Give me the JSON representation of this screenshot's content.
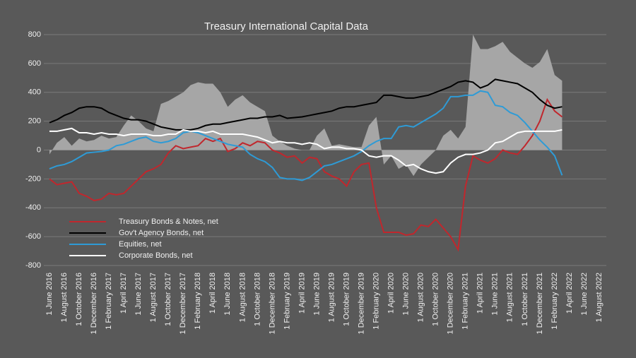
{
  "chart_data": {
    "type": "line",
    "title": "Treasury International Capital Data",
    "categories": [
      "1 June 2016",
      null,
      "1 August 2016",
      null,
      "1 October 2016",
      null,
      "1 December 2016",
      null,
      "1 February 2017",
      null,
      "1 April 2017",
      null,
      "1 June 2017",
      null,
      "1 August 2017",
      null,
      "1 October 2017",
      null,
      "1 December 2017",
      null,
      "1 February 2018",
      null,
      "1 April 2018",
      null,
      "1 June 2018",
      null,
      "1 August 2018",
      null,
      "1 October 2018",
      null,
      "1 December 2018",
      null,
      "1 February 2019",
      null,
      "1 April 2019",
      null,
      "1 June 2019",
      null,
      "1 August 2019",
      null,
      "1 October 2019",
      null,
      "1 December 2019",
      null,
      "1 February 2020",
      null,
      "1 April 2020",
      null,
      "1 June 2020",
      null,
      "1 August 2020",
      null,
      "1 October 2020",
      null,
      "1 December 2020",
      null,
      "1 February 2021",
      null,
      "1 April 2021",
      null,
      "1 June 2021",
      null,
      "1 August 2021",
      null,
      "1 October 2021",
      null,
      "1 December 2021",
      null,
      "1 February 2022",
      null,
      "1 April 2022",
      null,
      "1 June 2022",
      null,
      "1 August 2022"
    ],
    "ylim": [
      -800,
      800
    ],
    "yticks": [
      -800,
      -600,
      -400,
      -200,
      0,
      200,
      400,
      600,
      800
    ],
    "grid": true,
    "series": [
      {
        "type": "area",
        "color": "#a6a6a6",
        "values": [
          -30,
          50,
          90,
          30,
          80,
          60,
          70,
          100,
          80,
          90,
          170,
          240,
          200,
          150,
          130,
          320,
          340,
          370,
          400,
          450,
          470,
          460,
          460,
          400,
          300,
          350,
          380,
          330,
          300,
          270,
          100,
          60,
          30,
          10,
          0,
          0,
          100,
          150,
          30,
          40,
          30,
          20,
          20,
          170,
          230,
          -100,
          -40,
          -130,
          -100,
          -180,
          -100,
          -50,
          0,
          100,
          140,
          80,
          160,
          800,
          700,
          700,
          720,
          750,
          680,
          640,
          600,
          570,
          610,
          700,
          520,
          480,
          null,
          null,
          null,
          null,
          null
        ]
      },
      {
        "name": "Treasury Bonds & Notes, net",
        "color": "#c0272d",
        "values": [
          -200,
          -240,
          -230,
          -220,
          -300,
          -320,
          -350,
          -340,
          -300,
          -310,
          -300,
          -250,
          -200,
          -150,
          -130,
          -100,
          -20,
          30,
          10,
          20,
          30,
          80,
          60,
          80,
          -10,
          10,
          50,
          30,
          60,
          50,
          0,
          -20,
          -50,
          -40,
          -90,
          -50,
          -60,
          -150,
          -180,
          -200,
          -250,
          -150,
          -100,
          -90,
          -400,
          -570,
          -570,
          -570,
          -590,
          -580,
          -520,
          -530,
          -480,
          -540,
          -600,
          -690,
          -250,
          -40,
          -70,
          -90,
          -60,
          0,
          -20,
          -30,
          30,
          100,
          200,
          350,
          270,
          230,
          null,
          null,
          null,
          null,
          null
        ]
      },
      {
        "name": "Gov't Agency Bonds, net",
        "color": "#000000",
        "values": [
          190,
          210,
          240,
          260,
          290,
          300,
          300,
          290,
          260,
          240,
          220,
          210,
          210,
          200,
          180,
          160,
          150,
          140,
          140,
          140,
          150,
          170,
          180,
          180,
          190,
          200,
          210,
          220,
          220,
          230,
          230,
          240,
          220,
          225,
          230,
          240,
          250,
          260,
          270,
          290,
          300,
          300,
          310,
          320,
          330,
          380,
          380,
          370,
          360,
          360,
          370,
          380,
          400,
          420,
          440,
          470,
          480,
          470,
          430,
          450,
          490,
          480,
          470,
          460,
          430,
          400,
          350,
          310,
          290,
          300,
          null,
          null,
          null,
          null,
          null
        ]
      },
      {
        "name": "Equities, net",
        "color": "#2e9bd6",
        "values": [
          -130,
          -110,
          -100,
          -80,
          -50,
          -20,
          -15,
          -10,
          0,
          30,
          40,
          60,
          80,
          90,
          60,
          50,
          60,
          80,
          120,
          130,
          120,
          100,
          80,
          60,
          40,
          30,
          20,
          -30,
          -60,
          -80,
          -120,
          -190,
          -200,
          -200,
          -210,
          -190,
          -150,
          -110,
          -100,
          -80,
          -60,
          -40,
          -10,
          30,
          60,
          80,
          80,
          160,
          170,
          160,
          190,
          220,
          250,
          290,
          370,
          370,
          380,
          380,
          410,
          400,
          310,
          300,
          260,
          240,
          190,
          130,
          70,
          20,
          -40,
          -175,
          null,
          null,
          null,
          null,
          null
        ]
      },
      {
        "name": "Corporate Bonds, net",
        "color": "#ffffff",
        "values": [
          130,
          130,
          140,
          150,
          120,
          120,
          110,
          120,
          110,
          110,
          100,
          110,
          110,
          110,
          100,
          100,
          110,
          110,
          140,
          130,
          130,
          120,
          130,
          110,
          110,
          110,
          110,
          100,
          90,
          70,
          50,
          60,
          50,
          50,
          40,
          50,
          40,
          10,
          20,
          20,
          10,
          10,
          0,
          -40,
          -50,
          -40,
          -40,
          -70,
          -110,
          -100,
          -130,
          -150,
          -160,
          -150,
          -90,
          -50,
          -30,
          -30,
          -20,
          0,
          50,
          60,
          90,
          120,
          130,
          130,
          130,
          130,
          130,
          140,
          null,
          null,
          null,
          null,
          null
        ]
      }
    ]
  }
}
